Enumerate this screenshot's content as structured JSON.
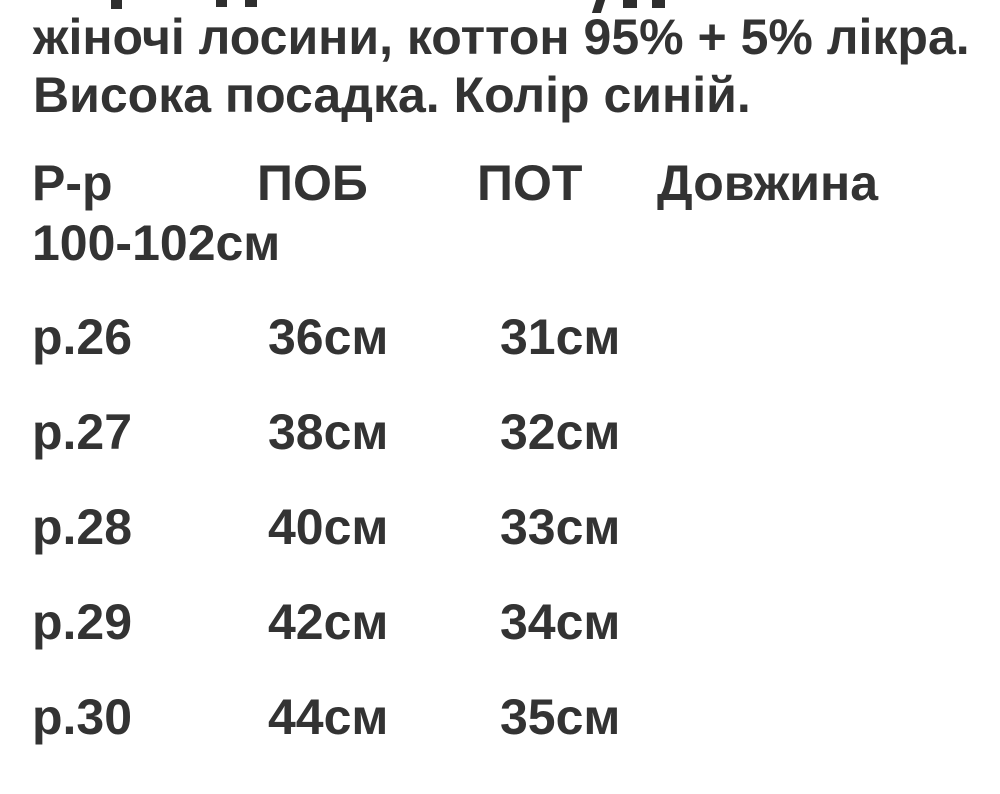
{
  "page": {
    "background": "#ffffff",
    "text_color": "#333333"
  },
  "description": {
    "line1": "жіночі лосини, коттон 95% + 5% лікра.",
    "line2": "Висока посадка. Колір синій."
  },
  "size_table": {
    "headers": [
      "Р-р",
      "ПОБ",
      "ПОТ",
      "Довжина"
    ],
    "length_value": "100-102см",
    "rows": [
      {
        "size": "р.26",
        "pob": "36см",
        "pot": "31см"
      },
      {
        "size": "р.27",
        "pob": "38см",
        "pot": "32см"
      },
      {
        "size": "р.28",
        "pob": "40см",
        "pot": "33см"
      },
      {
        "size": "р.29",
        "pob": "42см",
        "pot": "34см"
      },
      {
        "size": "р.30",
        "pob": "44см",
        "pot": "35см"
      }
    ]
  }
}
